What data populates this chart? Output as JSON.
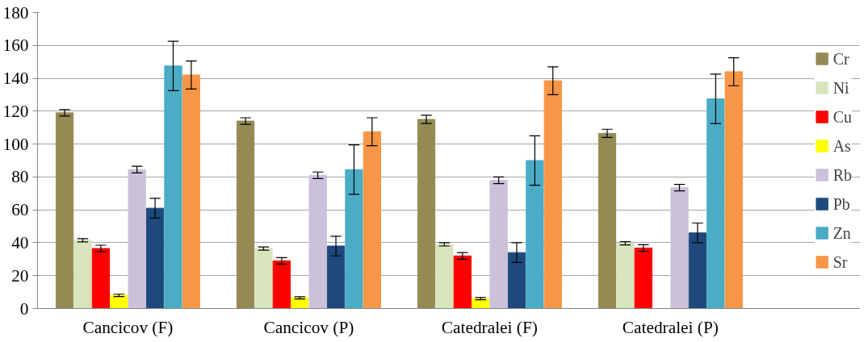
{
  "chart_data": {
    "type": "bar",
    "categories": [
      "Cancicov (F)",
      "Cancicov (P)",
      "Catedralei (F)",
      "Catedralei (P)"
    ],
    "series": [
      {
        "name": "Cr",
        "color": "#948a54",
        "values": [
          119,
          114,
          115,
          106.5
        ],
        "errors": [
          2,
          2,
          2.5,
          2.5
        ]
      },
      {
        "name": "Ni",
        "color": "#d7e4bd",
        "values": [
          41.5,
          36.5,
          39,
          39.7
        ],
        "errors": [
          1,
          1,
          1,
          1
        ]
      },
      {
        "name": "Cu",
        "color": "#ff0000",
        "values": [
          36.5,
          29,
          32,
          36.8
        ],
        "errors": [
          2,
          2,
          2,
          2
        ]
      },
      {
        "name": "As",
        "color": "#ffff00",
        "values": [
          8,
          6.5,
          6,
          null
        ],
        "errors": [
          0.7,
          0.7,
          0.7,
          null
        ]
      },
      {
        "name": "Rb",
        "color": "#ccc1da",
        "values": [
          84.5,
          81,
          78,
          73.5
        ],
        "errors": [
          2,
          2,
          2,
          2
        ]
      },
      {
        "name": "Pb",
        "color": "#1f497d",
        "values": [
          61,
          38,
          34,
          46
        ],
        "errors": [
          6,
          6,
          6,
          6
        ]
      },
      {
        "name": "Zn",
        "color": "#4bacc6",
        "values": [
          147.5,
          84.5,
          90,
          127.5
        ],
        "errors": [
          15,
          15,
          15,
          15
        ]
      },
      {
        "name": "Sr",
        "color": "#f79646",
        "values": [
          142,
          107.5,
          138.5,
          144
        ],
        "errors": [
          8.5,
          8.5,
          8.5,
          8.5
        ]
      }
    ],
    "ylim": [
      0,
      180
    ],
    "yticks": [
      0,
      20,
      40,
      60,
      80,
      100,
      120,
      140,
      160,
      180
    ],
    "grid": "y",
    "legend": "right"
  }
}
